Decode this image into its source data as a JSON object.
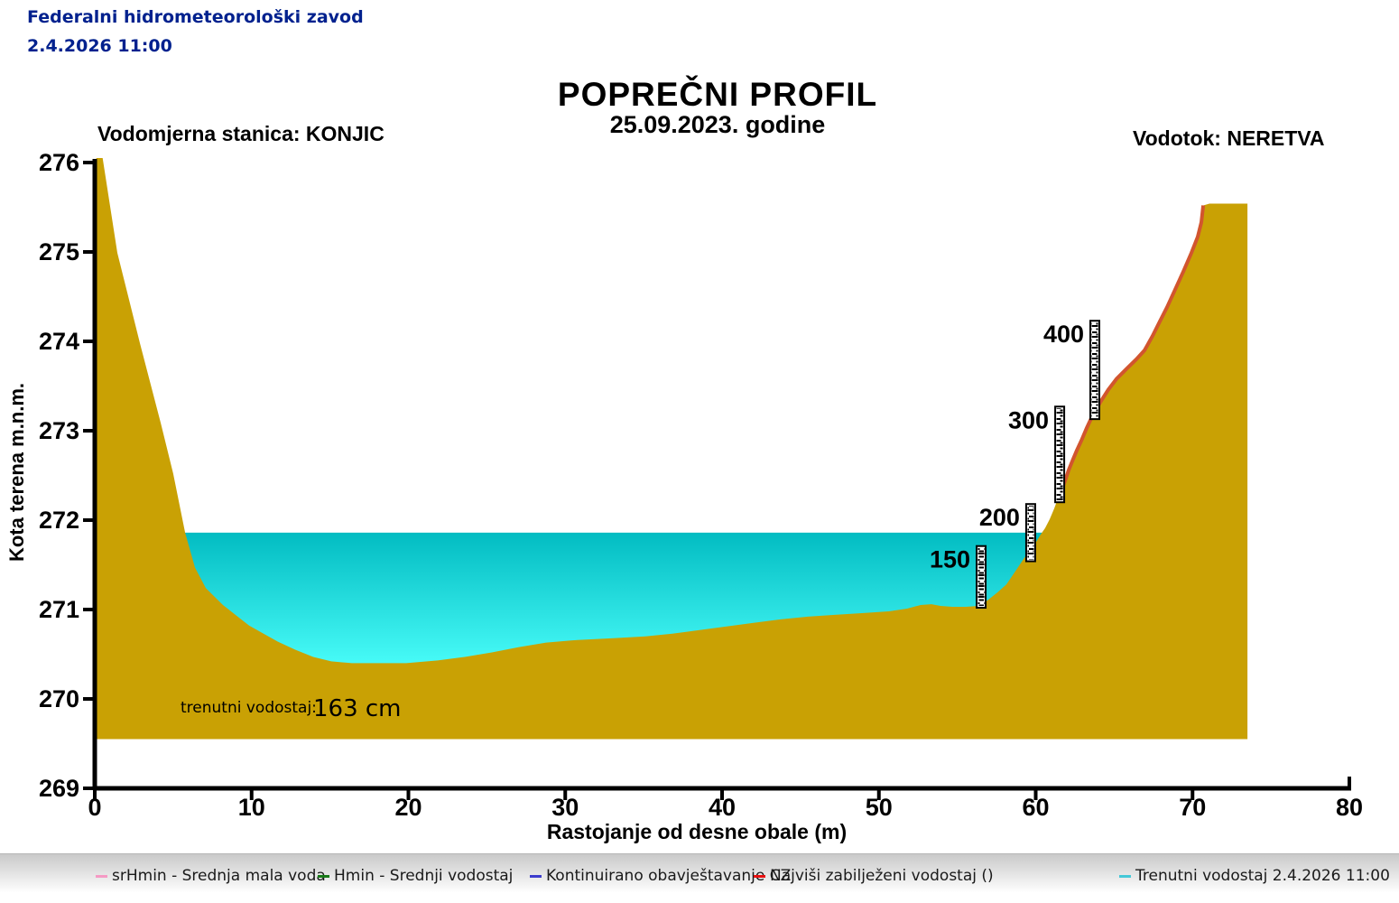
{
  "header": {
    "org": "Federalni hidrometeorološki zavod",
    "datetime": "2.4.2026 11:00"
  },
  "title": "POPREČNI PROFIL",
  "subtitle": "25.09.2023. godine",
  "station_line": "Vodomjerna stanica: KONJIC",
  "river_line": "Vodotok: NERETVA",
  "current_level": {
    "label": "trenutni vodostaj:",
    "value": "163 cm"
  },
  "colors": {
    "terrain": "#c9a104",
    "water_top": "#02bcc2",
    "water_bottom": "#4cfffb",
    "max_recorded_line": "#d2552e",
    "header_text": "#00218e",
    "axis": "#000000"
  },
  "legend": [
    {
      "label": "srHmin - Srednja mala voda",
      "color": "#f59ac4"
    },
    {
      "label": "Hmin - Srednji vodostaj",
      "color": "#187a18"
    },
    {
      "label": "Kontinuirano obavještavanje CZ",
      "color": "#3c3ccd"
    },
    {
      "label": "Najviši zabilježeni vodostaj ()",
      "color": "#e81010"
    },
    {
      "label": "Trenutni vodostaj 2.4.2026 11:00",
      "color": "#45c8d8"
    }
  ],
  "chart_data": {
    "type": "area",
    "title": "POPREČNI PROFIL",
    "date": "25.09.2023. godine",
    "station": "KONJIC",
    "river": "NERETVA",
    "xlabel": "Rastojanje od desne obale (m)",
    "ylabel": "Kota terena m.n.m.",
    "xlim": [
      0,
      80
    ],
    "ylim": [
      269,
      276
    ],
    "x_ticks": [
      0,
      10,
      20,
      30,
      40,
      50,
      60,
      70,
      80
    ],
    "y_ticks": [
      276,
      275,
      274,
      273,
      272,
      271,
      270,
      269
    ],
    "grid": false,
    "water_level_mnm": 271.86,
    "current_stage_cm": 163,
    "water_extent_m": [
      5.76,
      60.35
    ],
    "terrain_base_mnm": 269.55,
    "max_recorded_extent_m": [
      61.3,
      70.68
    ],
    "gauges": [
      {
        "label": "150",
        "x_m": 56.52,
        "top_mnm": 271.71,
        "bottom_mnm": 271.02
      },
      {
        "label": "200",
        "x_m": 59.68,
        "top_mnm": 272.18,
        "bottom_mnm": 271.54
      },
      {
        "label": "300",
        "x_m": 61.53,
        "top_mnm": 273.27,
        "bottom_mnm": 272.2
      },
      {
        "label": "400",
        "x_m": 63.77,
        "top_mnm": 274.23,
        "bottom_mnm": 273.13
      }
    ],
    "terrain_profile": [
      [
        0.1,
        276.05
      ],
      [
        0.5,
        276.05
      ],
      [
        1.44,
        274.99
      ],
      [
        2.88,
        273.98
      ],
      [
        4.2,
        273.09
      ],
      [
        5.0,
        272.52
      ],
      [
        5.76,
        271.86
      ],
      [
        6.39,
        271.47
      ],
      [
        7.08,
        271.24
      ],
      [
        8.17,
        271.05
      ],
      [
        9.04,
        270.93
      ],
      [
        9.84,
        270.82
      ],
      [
        10.76,
        270.73
      ],
      [
        11.68,
        270.64
      ],
      [
        12.78,
        270.55
      ],
      [
        13.93,
        270.47
      ],
      [
        15.08,
        270.42
      ],
      [
        16.4,
        270.4
      ],
      [
        19.86,
        270.4
      ],
      [
        21.87,
        270.43
      ],
      [
        23.6,
        270.47
      ],
      [
        25.32,
        270.52
      ],
      [
        27.05,
        270.58
      ],
      [
        28.78,
        270.63
      ],
      [
        30.79,
        270.66
      ],
      [
        33.09,
        270.68
      ],
      [
        35.11,
        270.7
      ],
      [
        36.83,
        270.73
      ],
      [
        38.56,
        270.77
      ],
      [
        40.29,
        270.81
      ],
      [
        42.01,
        270.85
      ],
      [
        43.74,
        270.89
      ],
      [
        45.47,
        270.92
      ],
      [
        47.19,
        270.94
      ],
      [
        48.92,
        270.96
      ],
      [
        50.65,
        270.98
      ],
      [
        51.8,
        271.01
      ],
      [
        52.66,
        271.05
      ],
      [
        53.35,
        271.06
      ],
      [
        53.93,
        271.04
      ],
      [
        54.68,
        271.03
      ],
      [
        55.54,
        271.03
      ],
      [
        56.4,
        271.04
      ],
      [
        56.98,
        271.11
      ],
      [
        57.55,
        271.19
      ],
      [
        58.13,
        271.28
      ],
      [
        58.71,
        271.43
      ],
      [
        59.28,
        271.58
      ],
      [
        59.86,
        271.71
      ],
      [
        60.32,
        271.84
      ],
      [
        60.6,
        271.91
      ],
      [
        60.89,
        272.01
      ],
      [
        61.18,
        272.13
      ],
      [
        61.41,
        272.24
      ],
      [
        61.64,
        272.33
      ],
      [
        61.87,
        272.44
      ],
      [
        62.1,
        272.56
      ],
      [
        62.33,
        272.66
      ],
      [
        62.62,
        272.78
      ],
      [
        62.91,
        272.89
      ],
      [
        63.25,
        273.03
      ],
      [
        63.65,
        273.18
      ],
      [
        64.12,
        273.32
      ],
      [
        64.63,
        273.46
      ],
      [
        65.15,
        273.58
      ],
      [
        65.78,
        273.69
      ],
      [
        66.42,
        273.8
      ],
      [
        66.94,
        273.9
      ],
      [
        67.45,
        274.06
      ],
      [
        67.91,
        274.22
      ],
      [
        68.37,
        274.38
      ],
      [
        68.89,
        274.58
      ],
      [
        69.41,
        274.78
      ],
      [
        69.93,
        274.99
      ],
      [
        70.33,
        275.17
      ],
      [
        70.56,
        275.33
      ],
      [
        70.68,
        275.52
      ],
      [
        71.08,
        275.54
      ],
      [
        73.5,
        275.54
      ]
    ]
  }
}
